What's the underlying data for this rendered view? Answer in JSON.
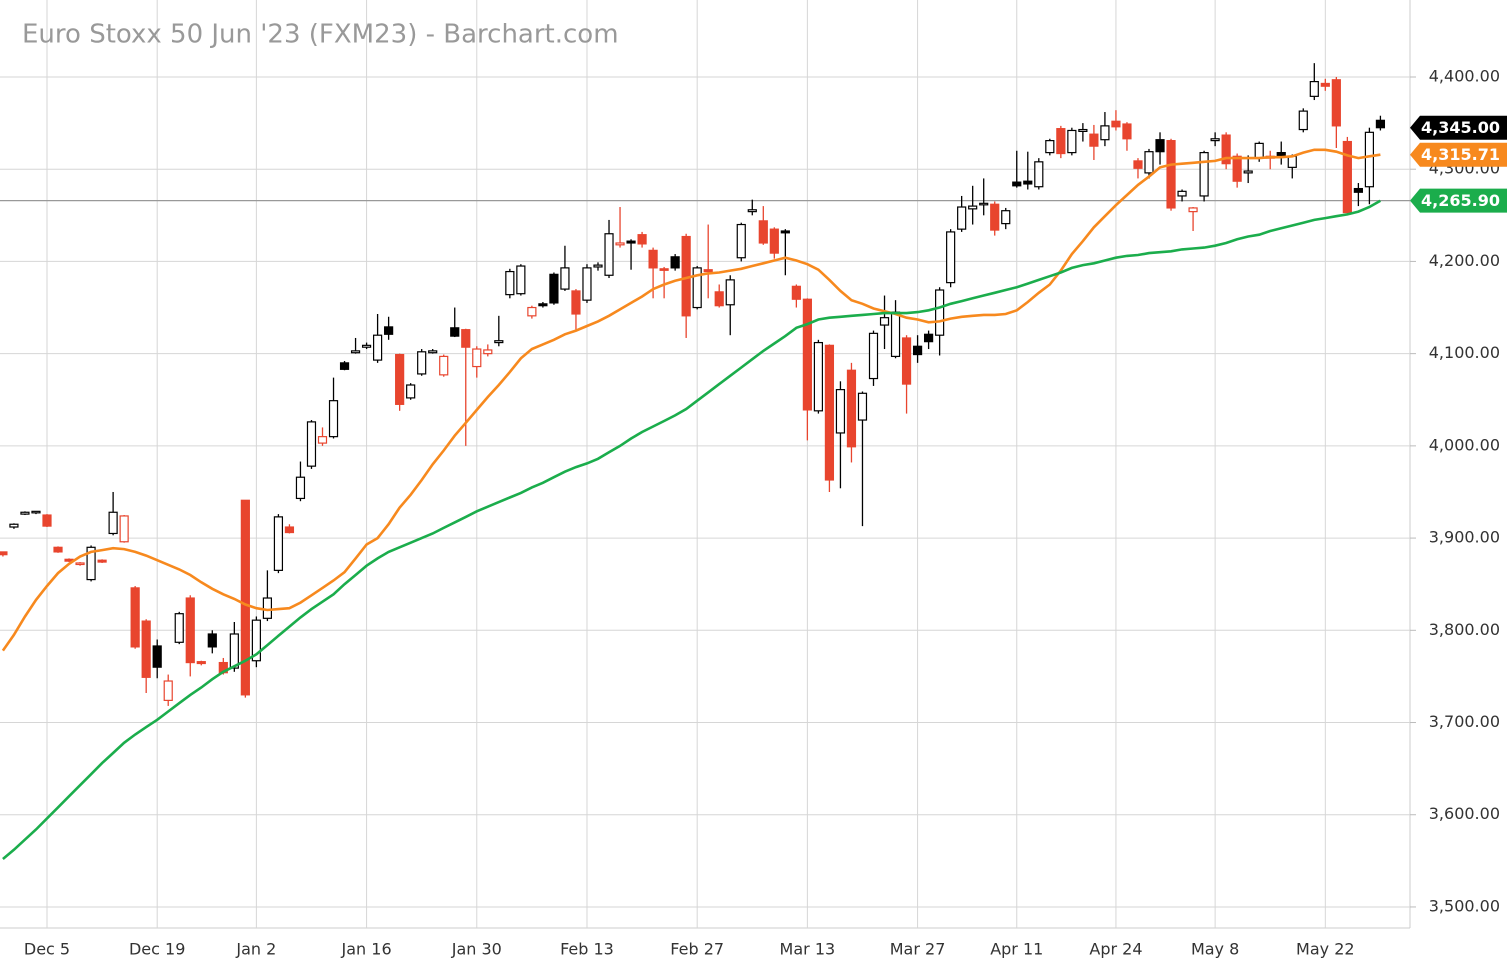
{
  "chart_data": {
    "type": "candlestick",
    "title": "Euro Stoxx 50 Jun '23 (FXM23) - Barchart.com",
    "ylim": [
      3480,
      4440
    ],
    "yticks": [
      {
        "value": 3500,
        "label": "3,500.00"
      },
      {
        "value": 3600,
        "label": "3,600.00"
      },
      {
        "value": 3700,
        "label": "3,700.00"
      },
      {
        "value": 3800,
        "label": "3,800.00"
      },
      {
        "value": 3900,
        "label": "3,900.00"
      },
      {
        "value": 4000,
        "label": "4,000.00"
      },
      {
        "value": 4100,
        "label": "4,100.00"
      },
      {
        "value": 4200,
        "label": "4,200.00"
      },
      {
        "value": 4300,
        "label": "4,300.00"
      },
      {
        "value": 4400,
        "label": "4,400.00"
      }
    ],
    "grid": true,
    "up_color": "#000000",
    "down_color": "#e8452e",
    "last_label": "4,345.00",
    "categories": [
      null,
      null,
      null,
      null,
      "Dec 5",
      null,
      null,
      null,
      null,
      null,
      null,
      null,
      null,
      null,
      "Dec 19",
      null,
      null,
      null,
      null,
      null,
      null,
      null,
      null,
      "Jan 2",
      null,
      null,
      null,
      null,
      null,
      null,
      null,
      null,
      null,
      "Jan 16",
      null,
      null,
      null,
      null,
      null,
      null,
      null,
      null,
      null,
      "Jan 30",
      null,
      null,
      null,
      null,
      null,
      null,
      null,
      null,
      null,
      "Feb 13",
      null,
      null,
      null,
      null,
      null,
      null,
      null,
      null,
      null,
      "Feb 27",
      null,
      null,
      null,
      null,
      null,
      null,
      null,
      null,
      null,
      "Mar 13",
      null,
      null,
      null,
      null,
      null,
      null,
      null,
      null,
      null,
      "Mar 27",
      null,
      null,
      null,
      null,
      null,
      null,
      null,
      null,
      "Apr 11",
      null,
      null,
      null,
      null,
      null,
      null,
      null,
      null,
      "Apr 24",
      null,
      null,
      null,
      null,
      null,
      null,
      null,
      null,
      "May 8",
      null,
      null,
      null,
      null,
      null,
      null,
      null,
      null,
      null,
      "May 22",
      null,
      null,
      null,
      null,
      null
    ],
    "ohlc": [
      [
        3885,
        3885,
        3880,
        3882
      ],
      [
        3912,
        3916,
        3910,
        3915
      ],
      [
        3926,
        3929,
        3925,
        3928
      ],
      [
        3928,
        3929,
        3926,
        3929
      ],
      [
        3925,
        3926,
        3912,
        3913
      ],
      [
        3890,
        3891,
        3884,
        3885
      ],
      [
        3877,
        3878,
        3874,
        3875
      ],
      [
        3872,
        3874,
        3870,
        3873
      ],
      [
        3855,
        3892,
        3853,
        3890
      ],
      [
        3876,
        3877,
        3873,
        3874
      ],
      [
        3905,
        3950,
        3903,
        3928
      ],
      [
        3896,
        3925,
        3895,
        3924
      ],
      [
        3846,
        3848,
        3780,
        3782
      ],
      [
        3810,
        3812,
        3732,
        3749
      ],
      [
        3783,
        3790,
        3748,
        3760
      ],
      [
        3724,
        3752,
        3718,
        3745
      ],
      [
        3787,
        3820,
        3785,
        3818
      ],
      [
        3835,
        3838,
        3750,
        3765
      ],
      [
        3766,
        3767,
        3762,
        3764
      ],
      [
        3796,
        3800,
        3775,
        3782
      ],
      [
        3765,
        3770,
        3752,
        3754
      ],
      [
        3759,
        3809,
        3755,
        3796
      ],
      [
        3941,
        3941,
        3727,
        3730
      ],
      [
        3767,
        3815,
        3760,
        3811
      ],
      [
        3813,
        3865,
        3810,
        3835
      ],
      [
        3865,
        3926,
        3862,
        3923
      ],
      [
        3912,
        3915,
        3905,
        3906
      ],
      [
        3943,
        3983,
        3940,
        3966
      ],
      [
        3978,
        4028,
        3975,
        4026
      ],
      [
        4003,
        4020,
        4000,
        4010
      ],
      [
        4010,
        4074,
        4008,
        4049
      ],
      [
        4090,
        4092,
        4082,
        4083
      ],
      [
        4101,
        4117,
        4100,
        4103
      ],
      [
        4107,
        4112,
        4105,
        4109
      ],
      [
        4093,
        4143,
        4090,
        4120
      ],
      [
        4129,
        4140,
        4115,
        4121
      ],
      [
        4099,
        4100,
        4038,
        4045
      ],
      [
        4052,
        4068,
        4050,
        4066
      ],
      [
        4078,
        4105,
        4076,
        4102
      ],
      [
        4101,
        4105,
        4100,
        4103
      ],
      [
        4077,
        4099,
        4075,
        4097
      ],
      [
        4128,
        4150,
        4118,
        4119
      ],
      [
        4126,
        4127,
        4000,
        4107
      ],
      [
        4086,
        4108,
        4074,
        4105
      ],
      [
        4100,
        4110,
        4097,
        4104
      ],
      [
        4112,
        4141,
        4108,
        4114
      ],
      [
        4164,
        4192,
        4160,
        4189
      ],
      [
        4165,
        4197,
        4163,
        4195
      ],
      [
        4141,
        4152,
        4138,
        4150
      ],
      [
        4154,
        4156,
        4150,
        4152
      ],
      [
        4186,
        4188,
        4153,
        4155
      ],
      [
        4170,
        4217,
        4168,
        4193
      ],
      [
        4168,
        4170,
        4125,
        4143
      ],
      [
        4158,
        4197,
        4155,
        4193
      ],
      [
        4194,
        4199,
        4190,
        4196
      ],
      [
        4185,
        4245,
        4182,
        4230
      ],
      [
        4218,
        4259,
        4215,
        4220
      ],
      [
        4222,
        4224,
        4191,
        4220
      ],
      [
        4229,
        4232,
        4215,
        4219
      ],
      [
        4212,
        4215,
        4160,
        4193
      ],
      [
        4192,
        4194,
        4160,
        4191
      ],
      [
        4205,
        4208,
        4190,
        4193
      ],
      [
        4227,
        4230,
        4117,
        4141
      ],
      [
        4150,
        4195,
        4148,
        4193
      ],
      [
        4191,
        4240,
        4160,
        4189
      ],
      [
        4167,
        4175,
        4150,
        4152
      ],
      [
        4153,
        4185,
        4120,
        4180
      ],
      [
        4204,
        4242,
        4200,
        4240
      ],
      [
        4254,
        4267,
        4250,
        4256
      ],
      [
        4244,
        4260,
        4218,
        4220
      ],
      [
        4235,
        4237,
        4203,
        4209
      ],
      [
        4233,
        4235,
        4185,
        4231
      ],
      [
        4173,
        4175,
        4150,
        4159
      ],
      [
        4159,
        4160,
        4006,
        4039
      ],
      [
        4038,
        4115,
        4035,
        4112
      ],
      [
        4109,
        4110,
        3950,
        3963
      ],
      [
        4014,
        4070,
        3954,
        4061
      ],
      [
        4082,
        4090,
        3982,
        3999
      ],
      [
        4028,
        4059,
        3913,
        4057
      ],
      [
        4073,
        4125,
        4065,
        4122
      ],
      [
        4131,
        4163,
        4105,
        4139
      ],
      [
        4097,
        4158,
        4095,
        4145
      ],
      [
        4117,
        4120,
        4035,
        4067
      ],
      [
        4108,
        4120,
        4090,
        4099
      ],
      [
        4121,
        4125,
        4105,
        4113
      ],
      [
        4120,
        4172,
        4098,
        4169
      ],
      [
        4177,
        4235,
        4172,
        4232
      ],
      [
        4235,
        4271,
        4232,
        4259
      ],
      [
        4257,
        4282,
        4240,
        4260
      ],
      [
        4262,
        4290,
        4250,
        4263
      ],
      [
        4262,
        4265,
        4228,
        4234
      ],
      [
        4241,
        4258,
        4235,
        4255
      ],
      [
        4286,
        4320,
        4280,
        4282
      ],
      [
        4287,
        4319,
        4278,
        4284
      ],
      [
        4281,
        4312,
        4278,
        4308
      ],
      [
        4318,
        4333,
        4315,
        4331
      ],
      [
        4344,
        4347,
        4312,
        4317
      ],
      [
        4318,
        4345,
        4315,
        4342
      ],
      [
        4341,
        4350,
        4330,
        4343
      ],
      [
        4338,
        4348,
        4310,
        4325
      ],
      [
        4332,
        4362,
        4325,
        4347
      ],
      [
        4352,
        4364,
        4342,
        4346
      ],
      [
        4349,
        4351,
        4320,
        4333
      ],
      [
        4309,
        4312,
        4290,
        4301
      ],
      [
        4296,
        4322,
        4290,
        4319
      ],
      [
        4332,
        4340,
        4305,
        4319
      ],
      [
        4331,
        4333,
        4255,
        4258
      ],
      [
        4271,
        4278,
        4265,
        4276
      ],
      [
        4254,
        4259,
        4233,
        4258
      ],
      [
        4271,
        4320,
        4265,
        4318
      ],
      [
        4331,
        4340,
        4325,
        4333
      ],
      [
        4337,
        4340,
        4300,
        4306
      ],
      [
        4314,
        4317,
        4280,
        4287
      ],
      [
        4296,
        4315,
        4285,
        4298
      ],
      [
        4312,
        4330,
        4308,
        4328
      ],
      [
        4314,
        4320,
        4300,
        4312
      ],
      [
        4318,
        4330,
        4305,
        4313
      ],
      [
        4302,
        4316,
        4290,
        4314
      ],
      [
        4343,
        4366,
        4340,
        4363
      ],
      [
        4379,
        4415,
        4375,
        4395
      ],
      [
        4393,
        4398,
        4385,
        4390
      ],
      [
        4397,
        4400,
        4323,
        4347
      ],
      [
        4330,
        4335,
        4250,
        4253
      ],
      [
        4279,
        4285,
        4260,
        4275
      ],
      [
        4281,
        4345,
        4262,
        4340
      ],
      [
        4353,
        4358,
        4342,
        4345
      ]
    ],
    "lines": [
      {
        "color": "#f7891e",
        "last_label": "4,315.71",
        "values": [
          3778,
          3795,
          3815,
          3833,
          3848,
          3862,
          3872,
          3880,
          3885,
          3887,
          3889,
          3888,
          3885,
          3881,
          3876,
          3871,
          3866,
          3860,
          3852,
          3845,
          3839,
          3834,
          3828,
          3824,
          3822,
          3823,
          3824,
          3830,
          3838,
          3846,
          3854,
          3863,
          3878,
          3893,
          3900,
          3915,
          3933,
          3947,
          3963,
          3980,
          3995,
          4011,
          4025,
          4039,
          4053,
          4066,
          4080,
          4095,
          4105,
          4110,
          4115,
          4121,
          4125,
          4130,
          4135,
          4141,
          4148,
          4155,
          4162,
          4170,
          4175,
          4179,
          4182,
          4185,
          4187,
          4188,
          4190,
          4192,
          4195,
          4198,
          4201,
          4204,
          4201,
          4197,
          4191,
          4180,
          4168,
          4158,
          4154,
          4149,
          4146,
          4143,
          4139,
          4137,
          4134,
          4135,
          4138,
          4140,
          4141,
          4142,
          4142,
          4143,
          4147,
          4156,
          4166,
          4175,
          4190,
          4208,
          4222,
          4237,
          4249,
          4261,
          4272,
          4283,
          4292,
          4302,
          4305,
          4306,
          4307,
          4308,
          4309,
          4312,
          4312,
          4312,
          4312,
          4313,
          4313,
          4314,
          4318,
          4321,
          4321,
          4319,
          4315,
          4312,
          4314,
          4315.71
        ]
      },
      {
        "color": "#1bad4c",
        "last_label": "4,265.90",
        "values": [
          3552,
          3562,
          3573,
          3584,
          3596,
          3608,
          3620,
          3632,
          3644,
          3656,
          3667,
          3678,
          3687,
          3695,
          3703,
          3712,
          3721,
          3730,
          3738,
          3747,
          3755,
          3761,
          3767,
          3774,
          3784,
          3794,
          3804,
          3814,
          3823,
          3831,
          3839,
          3850,
          3860,
          3870,
          3878,
          3885,
          3890,
          3895,
          3900,
          3905,
          3911,
          3917,
          3923,
          3929,
          3934,
          3939,
          3944,
          3949,
          3955,
          3960,
          3966,
          3972,
          3977,
          3981,
          3986,
          3993,
          4000,
          4008,
          4015,
          4021,
          4027,
          4033,
          4040,
          4049,
          4058,
          4067,
          4076,
          4085,
          4094,
          4103,
          4111,
          4119,
          4128,
          4132,
          4137,
          4139,
          4140,
          4141,
          4142,
          4143,
          4144,
          4144,
          4144,
          4145,
          4147,
          4150,
          4154,
          4157,
          4160,
          4163,
          4166,
          4169,
          4172,
          4176,
          4180,
          4184,
          4188,
          4193,
          4196,
          4198,
          4201,
          4204,
          4206,
          4207,
          4209,
          4210,
          4211,
          4213,
          4214,
          4215,
          4217,
          4220,
          4224,
          4227,
          4229,
          4233,
          4236,
          4239,
          4242,
          4245,
          4247,
          4249,
          4251,
          4254,
          4259,
          4265.9
        ]
      }
    ]
  }
}
